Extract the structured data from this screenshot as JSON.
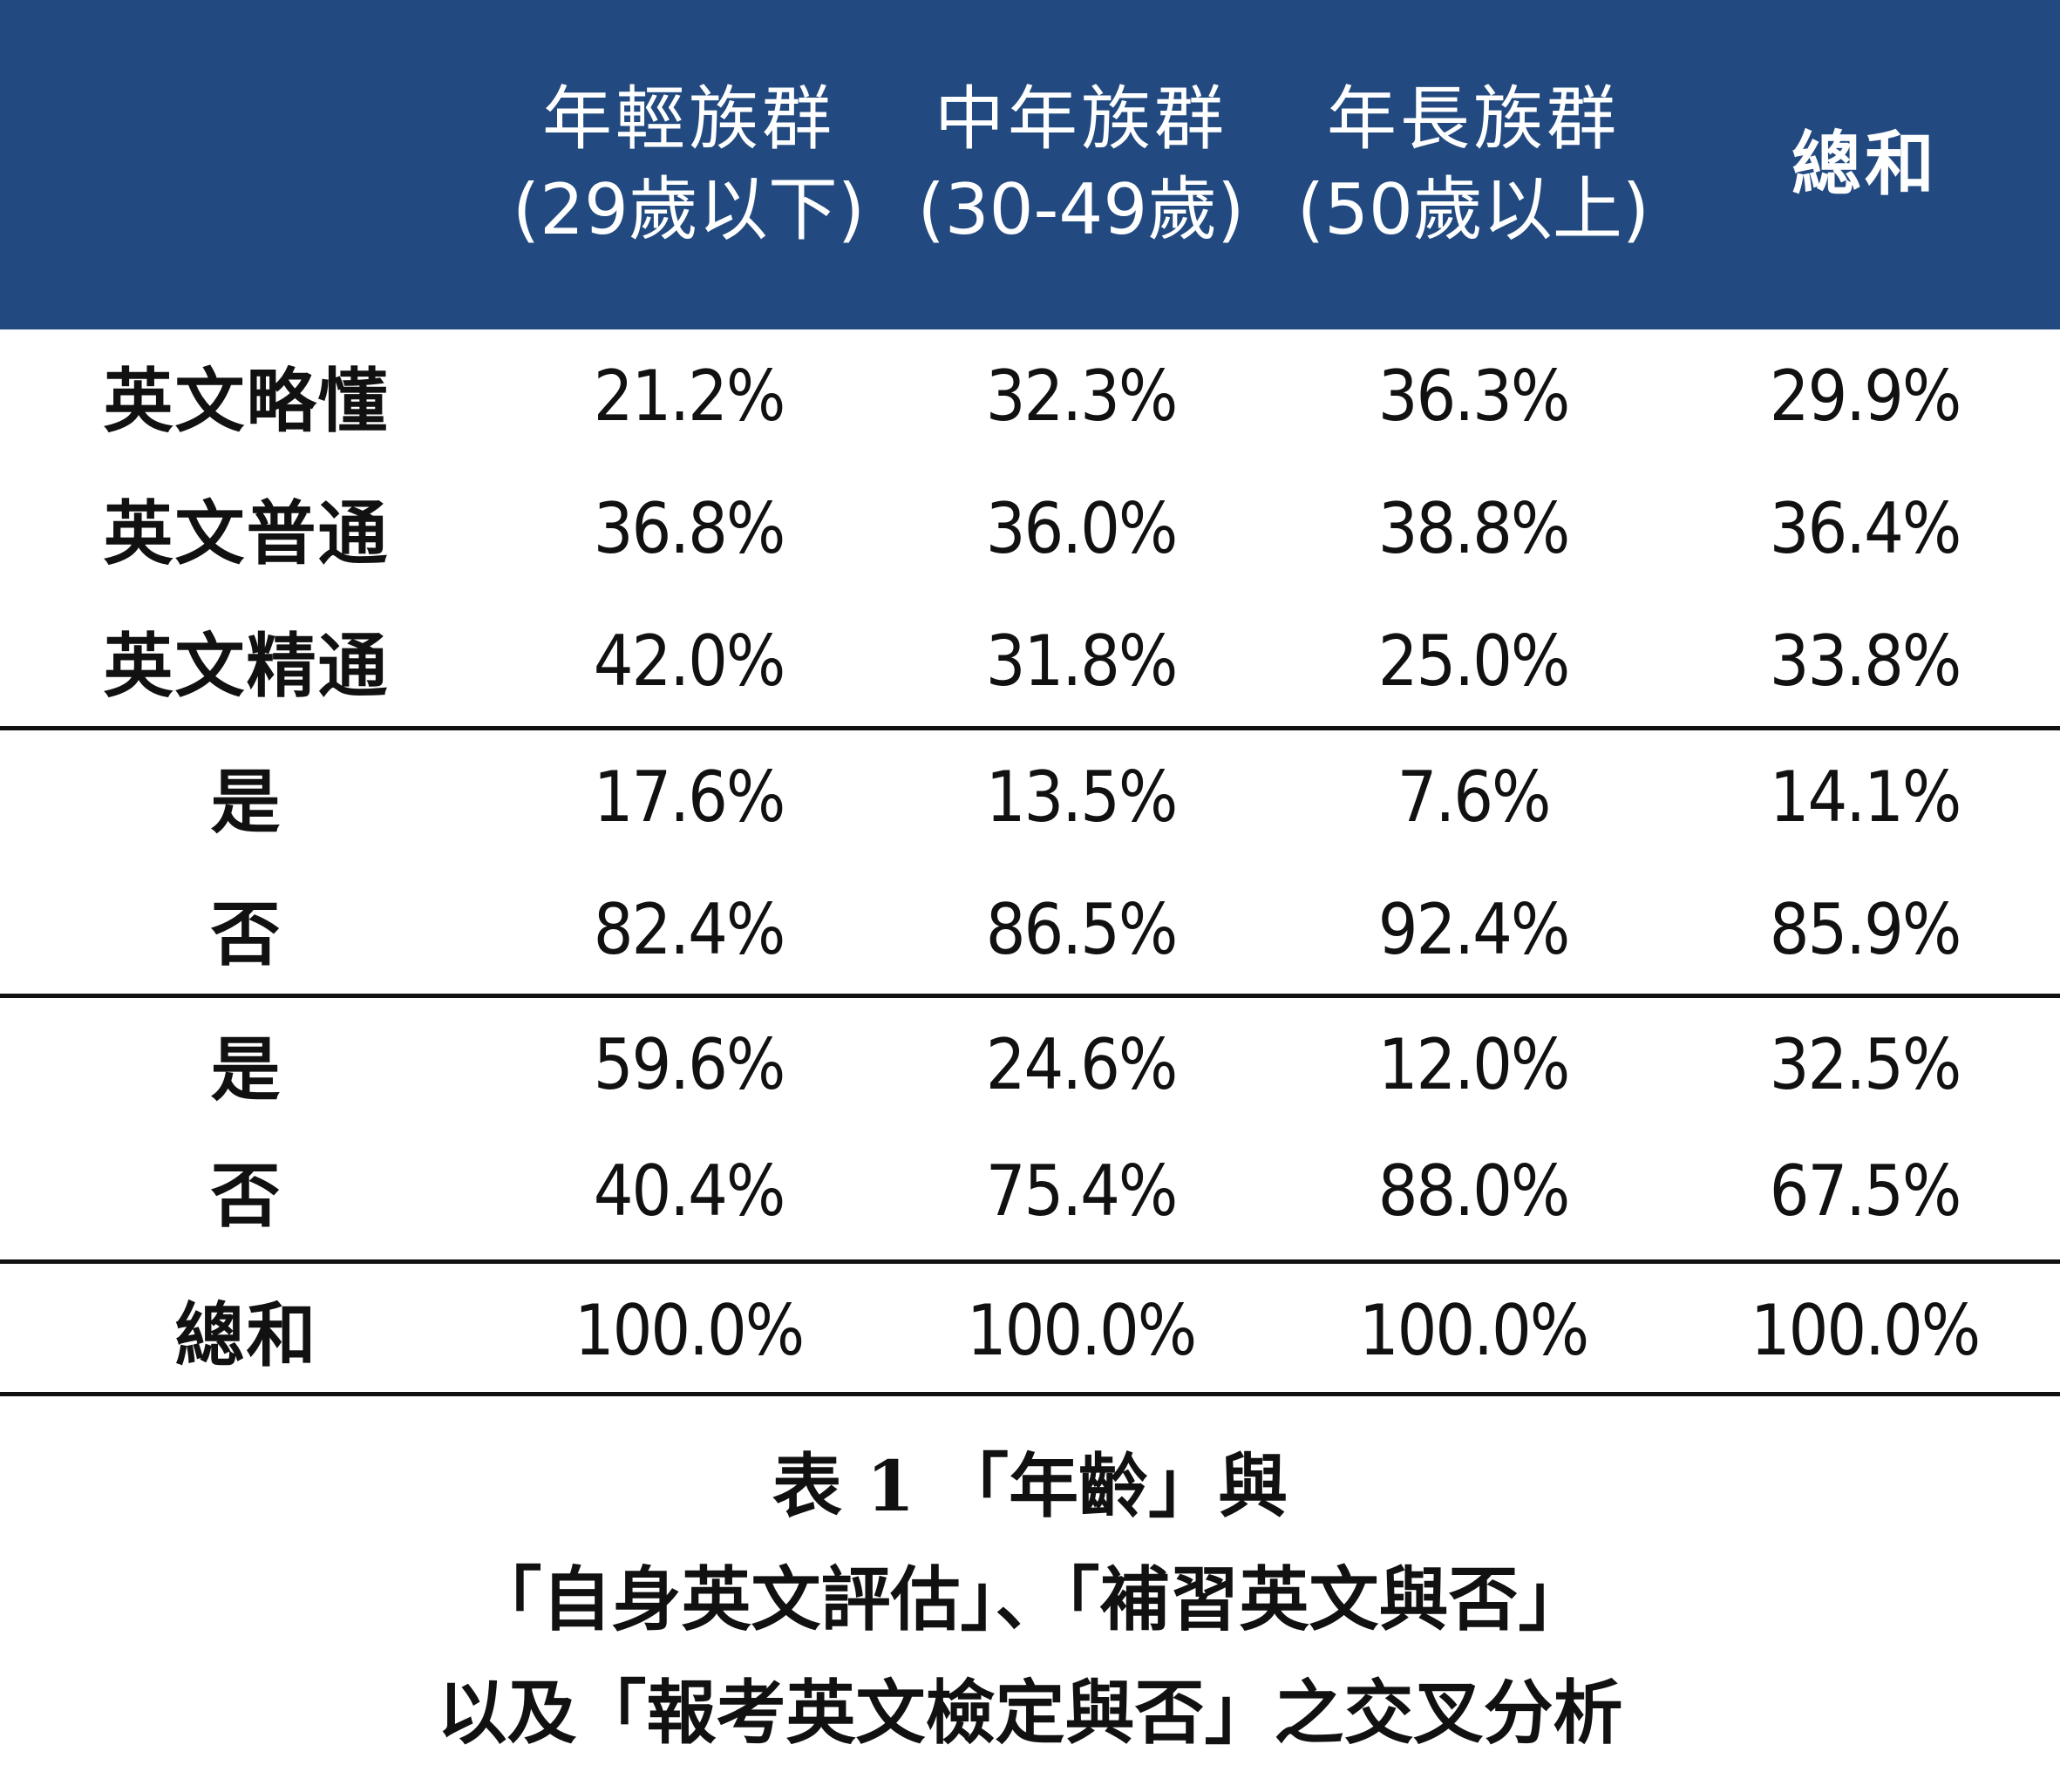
{
  "header": {
    "col1": {
      "line1": "年輕族群",
      "line2": "(29歲以下)"
    },
    "col2": {
      "line1": "中年族群",
      "line2": "(30-49歲)"
    },
    "col3": {
      "line1": "年長族群",
      "line2": "(50歲以上)"
    },
    "col4": {
      "label": "總和"
    }
  },
  "rows": [
    {
      "label": "英文略懂",
      "v1": "21.2%",
      "v2": "32.3%",
      "v3": "36.3%",
      "v4": "29.9%"
    },
    {
      "label": "英文普通",
      "v1": "36.8%",
      "v2": "36.0%",
      "v3": "38.8%",
      "v4": "36.4%"
    },
    {
      "label": "英文精通",
      "v1": "42.0%",
      "v2": "31.8%",
      "v3": "25.0%",
      "v4": "33.8%"
    },
    {
      "label": "是",
      "v1": "17.6%",
      "v2": "13.5%",
      "v3": "7.6%",
      "v4": "14.1%"
    },
    {
      "label": "否",
      "v1": "82.4%",
      "v2": "86.5%",
      "v3": "92.4%",
      "v4": "85.9%"
    },
    {
      "label": "是",
      "v1": "59.6%",
      "v2": "24.6%",
      "v3": "12.0%",
      "v4": "32.5%"
    },
    {
      "label": "否",
      "v1": "40.4%",
      "v2": "75.4%",
      "v3": "88.0%",
      "v4": "67.5%"
    },
    {
      "label": "總和",
      "v1": "100.0%",
      "v2": "100.0%",
      "v3": "100.0%",
      "v4": "100.0%"
    }
  ],
  "caption": {
    "line1": "表 1 「年齡」與",
    "line2": "「自身英文評估」、「補習英文與否」",
    "line3": "以及「報考英文檢定與否」之交叉分析"
  }
}
